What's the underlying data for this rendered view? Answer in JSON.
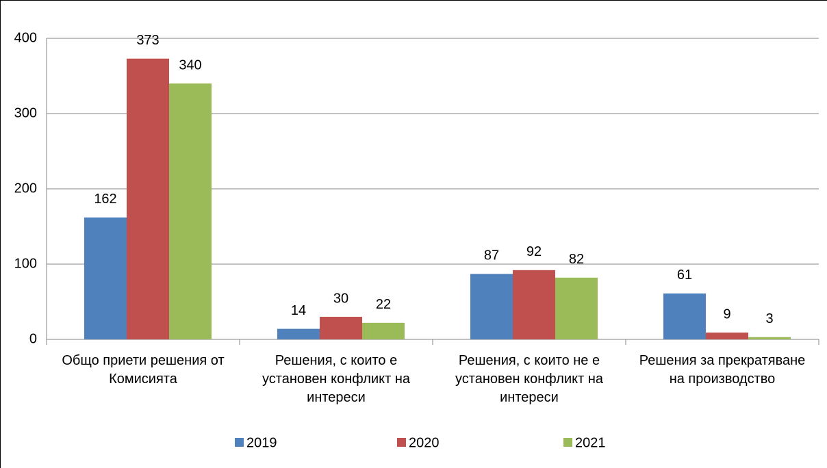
{
  "chart_data": {
    "type": "bar",
    "categories": [
      "Общо приети решения от Комисията",
      "Решения, с които е установен конфликт на интереси",
      "Решения, с които не е установен конфликт на интереси",
      "Решения за прекратяване на производство"
    ],
    "series": [
      {
        "name": "2019",
        "color": "#4f81bd",
        "values": [
          162,
          14,
          87,
          61
        ]
      },
      {
        "name": "2020",
        "color": "#c0504d",
        "values": [
          373,
          30,
          92,
          9
        ]
      },
      {
        "name": "2021",
        "color": "#9bbb59",
        "values": [
          340,
          22,
          82,
          3
        ]
      }
    ],
    "ylim": [
      0,
      400
    ],
    "yticks": [
      0,
      100,
      200,
      300,
      400
    ],
    "grid": true,
    "legend": "bottom"
  }
}
